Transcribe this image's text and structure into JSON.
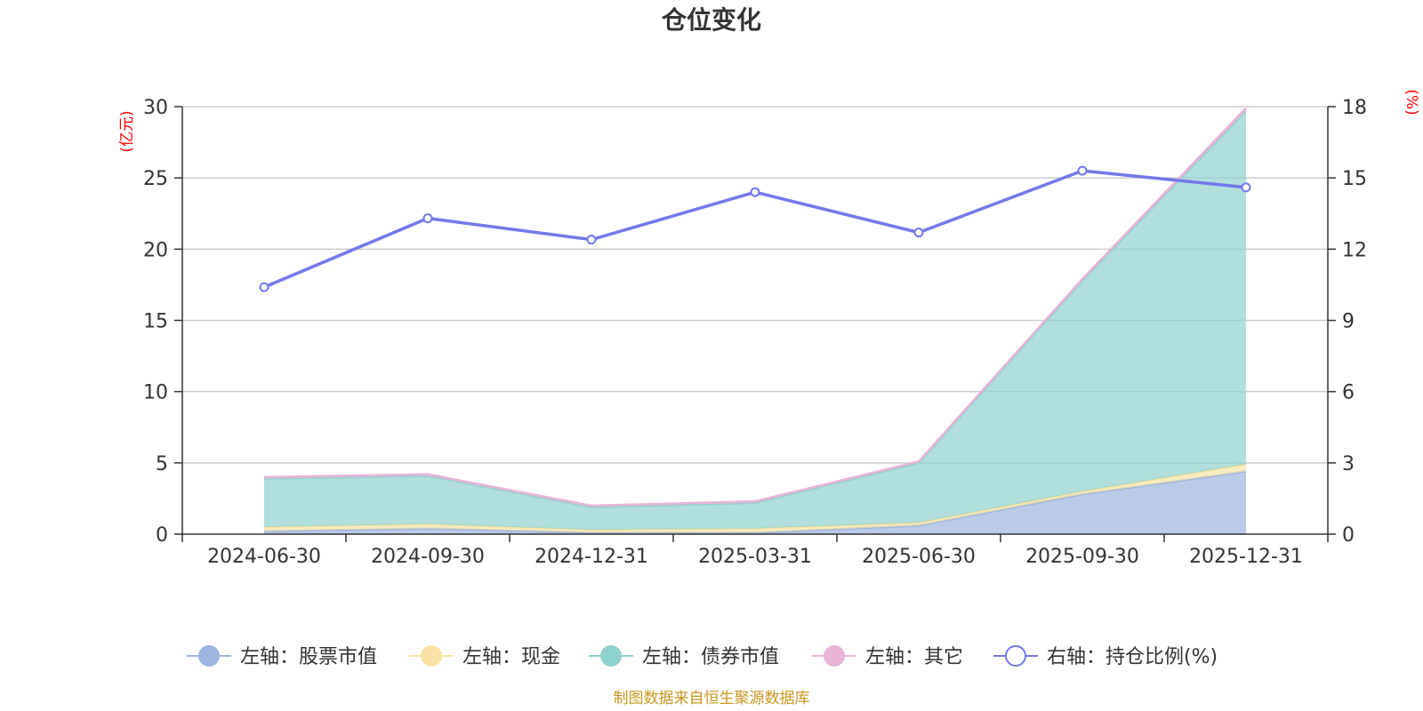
{
  "chart_data": {
    "type": "area",
    "title": "仓位变化",
    "left_axis_unit": "(亿元)",
    "right_axis_unit": "(%)",
    "categories": [
      "2024-06-30",
      "2024-09-30",
      "2024-12-31",
      "2025-03-31",
      "2025-06-30",
      "2025-09-30",
      "2025-12-31"
    ],
    "left_ylim": [
      0,
      30
    ],
    "left_ticks": [
      "0",
      "5",
      "10",
      "15",
      "20",
      "25",
      "30"
    ],
    "right_ylim": [
      0,
      18
    ],
    "right_ticks": [
      "0",
      "3",
      "6",
      "9",
      "12",
      "15",
      "18"
    ],
    "grid": true,
    "legend_position": "bottom",
    "stack_series": [
      {
        "name": "左轴：股票市值",
        "color": "#9db5e0",
        "values": [
          0.2,
          0.4,
          0.1,
          0.1,
          0.6,
          2.8,
          4.4
        ]
      },
      {
        "name": "左轴：现金",
        "color": "#f7e4a4",
        "values": [
          0.3,
          0.3,
          0.2,
          0.3,
          0.2,
          0.2,
          0.5
        ]
      },
      {
        "name": "左轴：债券市值",
        "color": "#8fd1cf",
        "values": [
          3.4,
          3.4,
          1.6,
          1.8,
          4.2,
          14.8,
          24.8
        ]
      },
      {
        "name": "左轴：其它",
        "color": "#e8b4d8",
        "values": [
          0.1,
          0.1,
          0.1,
          0.1,
          0.1,
          0.1,
          0.2
        ]
      }
    ],
    "line_series": {
      "name": "右轴：持仓比例(%)",
      "color": "#7378ec",
      "values": [
        10.4,
        13.3,
        12.4,
        14.4,
        12.7,
        15.3,
        14.6
      ]
    }
  },
  "source_text": "制图数据来自恒生聚源数据库"
}
